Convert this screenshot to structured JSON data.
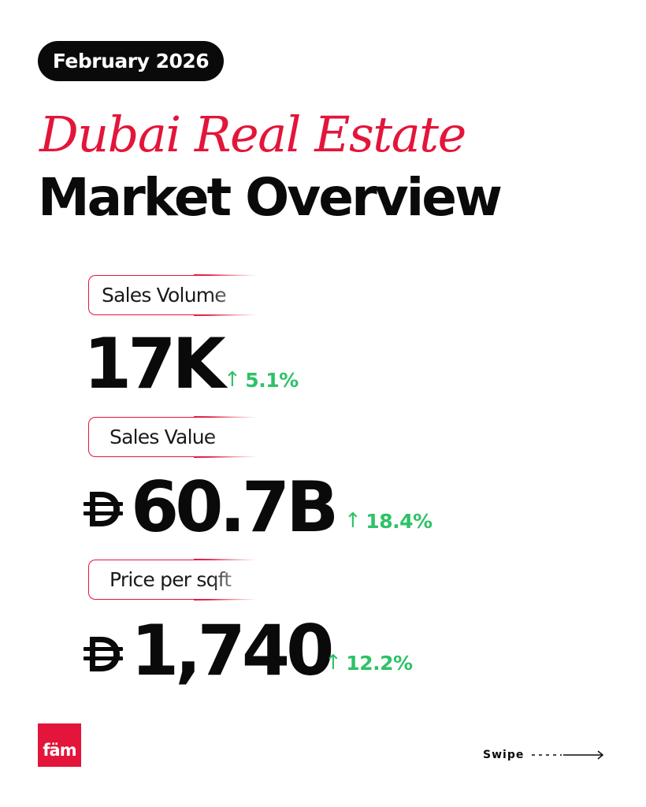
{
  "header": {
    "date_badge": "February 2026",
    "title_line1": "Dubai Real Estate",
    "title_line2": "Market Overview"
  },
  "metrics": [
    {
      "label": "Sales Volume",
      "value": "17K",
      "change": "5.1%",
      "currency_icon": ""
    },
    {
      "label": "Sales Value",
      "value": "60.7B",
      "change": "18.4%",
      "currency_icon": "dirham-icon"
    },
    {
      "label": "Price per sqft",
      "value": "1,740",
      "change": "12.2%",
      "currency_icon": "dirham-icon"
    }
  ],
  "footer": {
    "logo_text": "fäm",
    "swipe_label": "Swipe"
  },
  "colors": {
    "accent": "#e3153a",
    "positive": "#2ec266",
    "text": "#0a0a0a"
  }
}
